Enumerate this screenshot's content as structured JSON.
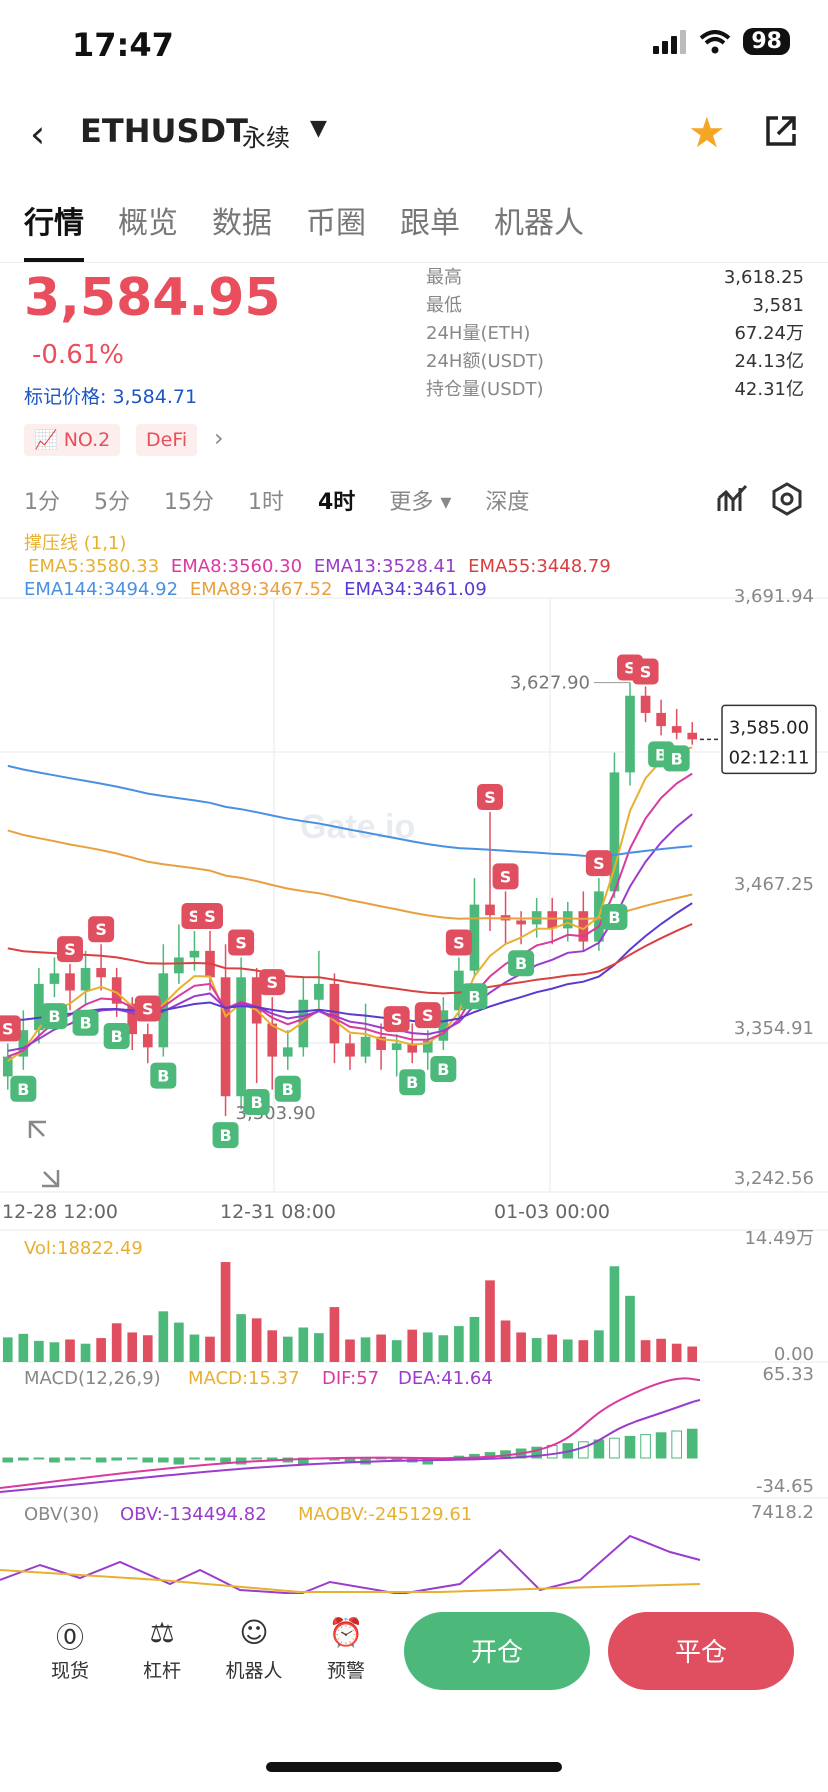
{
  "status_bar": {
    "time": "17:47",
    "battery": "98"
  },
  "header": {
    "symbol": "ETHUSDT",
    "contract_type": "永续"
  },
  "tabs": [
    "行情",
    "概览",
    "数据",
    "币圈",
    "跟单",
    "机器人"
  ],
  "ticker": {
    "price": "3,584.95",
    "change": "-0.61%",
    "mark_label": "标记价格:",
    "mark_price": "3,584.71",
    "badges": [
      "NO.2",
      "DeFi"
    ]
  },
  "stats": [
    {
      "label": "最高",
      "value": "3,618.25"
    },
    {
      "label": "最低",
      "value": "3,581"
    },
    {
      "label": "24H量(ETH)",
      "value": "67.24万"
    },
    {
      "label": "24H额(USDT)",
      "value": "24.13亿"
    },
    {
      "label": "持仓量(USDT)",
      "value": "42.31亿"
    }
  ],
  "intervals": [
    "1分",
    "5分",
    "15分",
    "1时",
    "4时",
    "更多",
    "深度"
  ],
  "indicators": {
    "title": "撑压线 (1,1)",
    "ema_row1": [
      "EMA5:3580.33",
      "EMA8:3560.30",
      "EMA13:3528.41",
      "EMA55:3448.79"
    ],
    "ema_row2": [
      "EMA144:3494.92",
      "EMA89:3467.52",
      "EMA34:3461.09"
    ]
  },
  "colors": {
    "up": "#4cb87a",
    "down": "#e04f5f",
    "accent": "#e84e5b",
    "ema5": "#e8b030",
    "ema8": "#d83aa0",
    "ema13": "#9a3ccc",
    "ema55": "#d94040",
    "ema144": "#4a90e2",
    "ema89": "#e8a040",
    "ema34": "#5a3ad0"
  },
  "chart_data": {
    "type": "candlestick",
    "price_axis": [
      "3,691.94",
      "3,467.25",
      "3,354.91",
      "3,242.56"
    ],
    "time_axis": [
      "12-28 12:00",
      "12-31 08:00",
      "01-03 00:00"
    ],
    "high_annotation": "3,627.90",
    "low_annotation": "3,303.90",
    "last_price_tag": "3,585.00",
    "countdown": "02:12:11",
    "watermark": "Gate.io",
    "ylim": [
      3242.56,
      3691.94
    ],
    "candles": [
      {
        "o": 3330,
        "c": 3345,
        "h": 3355,
        "l": 3320
      },
      {
        "o": 3345,
        "c": 3365,
        "h": 3380,
        "l": 3335
      },
      {
        "o": 3365,
        "c": 3400,
        "h": 3412,
        "l": 3355
      },
      {
        "o": 3400,
        "c": 3408,
        "h": 3420,
        "l": 3390
      },
      {
        "o": 3408,
        "c": 3395,
        "h": 3415,
        "l": 3380
      },
      {
        "o": 3395,
        "c": 3412,
        "h": 3425,
        "l": 3385
      },
      {
        "o": 3412,
        "c": 3405,
        "h": 3430,
        "l": 3395
      },
      {
        "o": 3405,
        "c": 3385,
        "h": 3412,
        "l": 3375
      },
      {
        "o": 3385,
        "c": 3362,
        "h": 3390,
        "l": 3350
      },
      {
        "o": 3362,
        "c": 3352,
        "h": 3370,
        "l": 3340
      },
      {
        "o": 3352,
        "c": 3408,
        "h": 3430,
        "l": 3345
      },
      {
        "o": 3408,
        "c": 3420,
        "h": 3445,
        "l": 3400
      },
      {
        "o": 3420,
        "c": 3425,
        "h": 3440,
        "l": 3410
      },
      {
        "o": 3425,
        "c": 3405,
        "h": 3440,
        "l": 3395
      },
      {
        "o": 3405,
        "c": 3315,
        "h": 3430,
        "l": 3300
      },
      {
        "o": 3315,
        "c": 3405,
        "h": 3420,
        "l": 3305
      },
      {
        "o": 3405,
        "c": 3370,
        "h": 3412,
        "l": 3325
      },
      {
        "o": 3370,
        "c": 3345,
        "h": 3390,
        "l": 3320
      },
      {
        "o": 3345,
        "c": 3352,
        "h": 3365,
        "l": 3335
      },
      {
        "o": 3352,
        "c": 3388,
        "h": 3405,
        "l": 3345
      },
      {
        "o": 3388,
        "c": 3400,
        "h": 3425,
        "l": 3380
      },
      {
        "o": 3400,
        "c": 3355,
        "h": 3408,
        "l": 3340
      },
      {
        "o": 3355,
        "c": 3345,
        "h": 3362,
        "l": 3335
      },
      {
        "o": 3345,
        "c": 3360,
        "h": 3385,
        "l": 3340
      },
      {
        "o": 3360,
        "c": 3350,
        "h": 3370,
        "l": 3335
      },
      {
        "o": 3350,
        "c": 3355,
        "h": 3362,
        "l": 3330
      },
      {
        "o": 3355,
        "c": 3348,
        "h": 3370,
        "l": 3340
      },
      {
        "o": 3348,
        "c": 3357,
        "h": 3365,
        "l": 3335
      },
      {
        "o": 3357,
        "c": 3380,
        "h": 3390,
        "l": 3350
      },
      {
        "o": 3380,
        "c": 3410,
        "h": 3420,
        "l": 3375
      },
      {
        "o": 3410,
        "c": 3460,
        "h": 3480,
        "l": 3405
      },
      {
        "o": 3460,
        "c": 3452,
        "h": 3530,
        "l": 3440
      },
      {
        "o": 3452,
        "c": 3448,
        "h": 3470,
        "l": 3430
      },
      {
        "o": 3448,
        "c": 3445,
        "h": 3455,
        "l": 3430
      },
      {
        "o": 3445,
        "c": 3455,
        "h": 3465,
        "l": 3435
      },
      {
        "o": 3455,
        "c": 3442,
        "h": 3465,
        "l": 3430
      },
      {
        "o": 3442,
        "c": 3455,
        "h": 3462,
        "l": 3432
      },
      {
        "o": 3455,
        "c": 3432,
        "h": 3470,
        "l": 3425
      },
      {
        "o": 3432,
        "c": 3470,
        "h": 3480,
        "l": 3425
      },
      {
        "o": 3470,
        "c": 3560,
        "h": 3575,
        "l": 3465
      },
      {
        "o": 3560,
        "c": 3618,
        "h": 3628,
        "l": 3550
      },
      {
        "o": 3618,
        "c": 3605,
        "h": 3625,
        "l": 3598
      },
      {
        "o": 3605,
        "c": 3595,
        "h": 3615,
        "l": 3588
      },
      {
        "o": 3595,
        "c": 3590,
        "h": 3608,
        "l": 3585
      },
      {
        "o": 3590,
        "c": 3585,
        "h": 3598,
        "l": 3581
      }
    ],
    "volume": {
      "label": "Vol:18822.49",
      "axis": [
        "14.49万",
        "0.00"
      ],
      "max": 14.49,
      "values": [
        3.5,
        4,
        3,
        2.8,
        3.2,
        2.6,
        3.4,
        5.5,
        4.2,
        3.8,
        7.2,
        5.6,
        3.9,
        3.6,
        14.2,
        6.8,
        6.2,
        4.5,
        3.6,
        4.9,
        4.1,
        7.8,
        3.2,
        3.5,
        3.9,
        3.1,
        4.6,
        4.2,
        3.8,
        5.1,
        6.4,
        11.6,
        5.9,
        4.2,
        3.4,
        3.9,
        3.2,
        3.1,
        4.5,
        13.6,
        9.4,
        3.1,
        3.3,
        2.6,
        2.2
      ]
    },
    "macd": {
      "label": "MACD(12,26,9)",
      "macd": "MACD:15.37",
      "dif": "DIF:57",
      "dea": "DEA:41.64",
      "axis": [
        "65.33",
        "-34.65"
      ]
    },
    "obv": {
      "label": "OBV(30)",
      "obv": "OBV:-134494.82",
      "maobv": "MAOBV:-245129.61",
      "axis": [
        "7418.2"
      ]
    }
  },
  "bottom_nav": [
    {
      "label": "现货",
      "icon": "spot-icon"
    },
    {
      "label": "杠杆",
      "icon": "leverage-icon"
    },
    {
      "label": "机器人",
      "icon": "robot-icon"
    },
    {
      "label": "预警",
      "icon": "alert-icon"
    }
  ],
  "actions": {
    "open": "开仓",
    "close": "平仓"
  }
}
